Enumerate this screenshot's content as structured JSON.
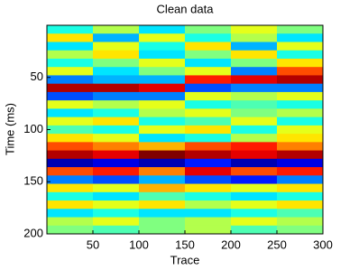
{
  "chart_data": {
    "type": "heatmap",
    "title": "Clean data",
    "xlabel": "Trace",
    "ylabel": "Time (ms)",
    "colormap": "jet",
    "clim": [
      -1,
      1
    ],
    "y_reversed": true,
    "xlim": [
      0,
      300
    ],
    "ylim": [
      0,
      200
    ],
    "xticks": [
      50,
      100,
      150,
      200,
      250,
      300
    ],
    "yticks": [
      50,
      100,
      150,
      200
    ],
    "x": [
      25,
      75,
      125,
      175,
      225,
      275
    ],
    "y": [
      4,
      12,
      20,
      28,
      36,
      44,
      52,
      60,
      68,
      76,
      84,
      92,
      100,
      108,
      116,
      124,
      132,
      140,
      148,
      156,
      164,
      172,
      180,
      188,
      196
    ],
    "values": [
      [
        -0.2,
        0.1,
        -0.3,
        0,
        0.2,
        0
      ],
      [
        0.3,
        -0.4,
        0.2,
        -0.2,
        0.1,
        -0.3
      ],
      [
        -0.3,
        0.2,
        -0.2,
        0.3,
        -0.4,
        0.2
      ],
      [
        0.1,
        0.3,
        -0.3,
        0,
        0.3,
        -0.2
      ],
      [
        -0.2,
        0,
        0.2,
        -0.3,
        0,
        0.3
      ],
      [
        0.2,
        -0.3,
        0,
        0.2,
        -0.5,
        0.6
      ],
      [
        -0.5,
        -0.4,
        -0.4,
        0.7,
        0.8,
        0.9
      ],
      [
        0.9,
        0.9,
        0.8,
        -0.6,
        -0.5,
        -0.5
      ],
      [
        -0.6,
        -0.5,
        -0.5,
        0.2,
        0.1,
        0.2
      ],
      [
        0.2,
        0.1,
        0.2,
        -0.2,
        -0.1,
        -0.2
      ],
      [
        -0.3,
        -0.2,
        0.1,
        0.2,
        0,
        0.1
      ],
      [
        0.2,
        0.3,
        -0.2,
        -0.1,
        0.2,
        -0.2
      ],
      [
        -0.1,
        -0.2,
        0.2,
        0.3,
        -0.2,
        0.2
      ],
      [
        0.3,
        0.2,
        -0.3,
        -0.2,
        0.1,
        0.3
      ],
      [
        0.6,
        0.5,
        0.4,
        0.6,
        0.7,
        0.5
      ],
      [
        0.9,
        0.8,
        1,
        0.9,
        0.8,
        0.9
      ],
      [
        -0.9,
        -0.8,
        -0.9,
        -0.7,
        -0.9,
        -0.8
      ],
      [
        0.6,
        0.7,
        0.5,
        0.8,
        0.6,
        0.7
      ],
      [
        -0.5,
        -0.6,
        -0.4,
        -0.6,
        -0.7,
        -0.5
      ],
      [
        0.3,
        0.2,
        0.4,
        0.3,
        0.2,
        0.3
      ],
      [
        -0.2,
        -0.3,
        -0.1,
        -0.2,
        -0.3,
        -0.2
      ],
      [
        0.3,
        0.2,
        0.3,
        0.1,
        0.2,
        0.3
      ],
      [
        -0.3,
        -0.2,
        -0.3,
        -0.3,
        -0.2,
        -0.1
      ],
      [
        0.1,
        0.2,
        0,
        0.1,
        0.2,
        0.1
      ],
      [
        0,
        -0.1,
        0,
        0.1,
        -0.1,
        0
      ]
    ]
  }
}
